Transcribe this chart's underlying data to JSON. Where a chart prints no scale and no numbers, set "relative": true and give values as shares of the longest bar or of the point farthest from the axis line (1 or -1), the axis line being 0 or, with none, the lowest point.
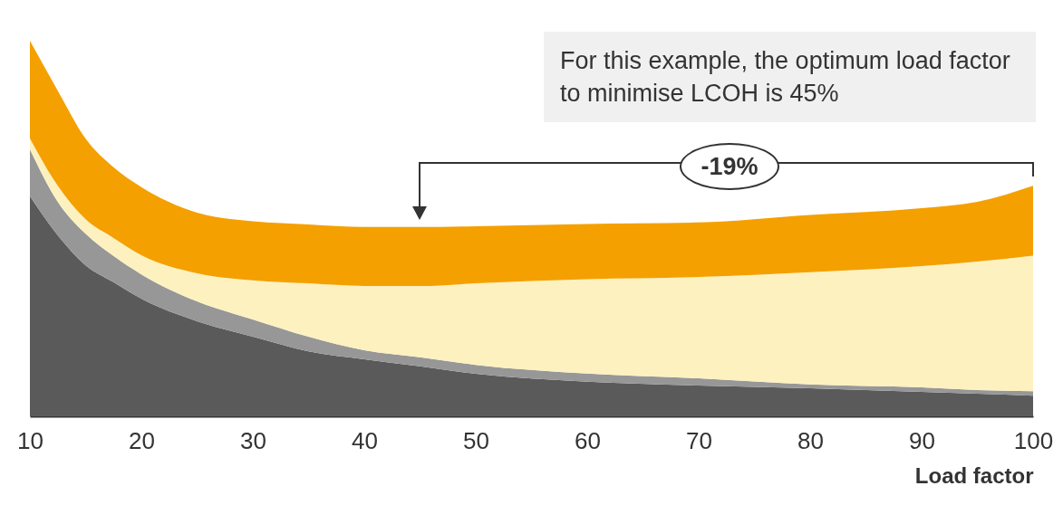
{
  "chart_data": {
    "type": "area",
    "stacked": true,
    "relative": true,
    "xlabel": "Load factor",
    "x": [
      10,
      12.5,
      15,
      17.5,
      20,
      25,
      30,
      35,
      40,
      45,
      50,
      60,
      70,
      80,
      90,
      95,
      100
    ],
    "xlim": [
      10,
      100
    ],
    "xticks": [
      10,
      20,
      30,
      40,
      50,
      60,
      70,
      80,
      90,
      100
    ],
    "series": [
      {
        "color": "#5a5a5a",
        "values": [
          0.586,
          0.482,
          0.402,
          0.357,
          0.313,
          0.253,
          0.212,
          0.173,
          0.152,
          0.133,
          0.113,
          0.092,
          0.082,
          0.075,
          0.065,
          0.06,
          0.055
        ]
      },
      {
        "color": "#979797",
        "values": [
          0.125,
          0.089,
          0.084,
          0.07,
          0.065,
          0.053,
          0.046,
          0.039,
          0.024,
          0.024,
          0.024,
          0.022,
          0.019,
          0.01,
          0.012,
          0.01,
          0.012
        ]
      },
      {
        "color": "#fef1c0",
        "values": [
          0.029,
          0.043,
          0.039,
          0.048,
          0.051,
          0.075,
          0.104,
          0.142,
          0.171,
          0.19,
          0.217,
          0.251,
          0.27,
          0.299,
          0.323,
          0.342,
          0.361
        ]
      },
      {
        "color": "#f4a000",
        "values": [
          0.26,
          0.253,
          0.214,
          0.188,
          0.181,
          0.161,
          0.157,
          0.157,
          0.157,
          0.157,
          0.152,
          0.147,
          0.145,
          0.152,
          0.154,
          0.159,
          0.186
        ]
      }
    ],
    "annotations": [
      "For this example, the optimum load factor to minimise LCOH is 45%",
      "-19%"
    ]
  }
}
